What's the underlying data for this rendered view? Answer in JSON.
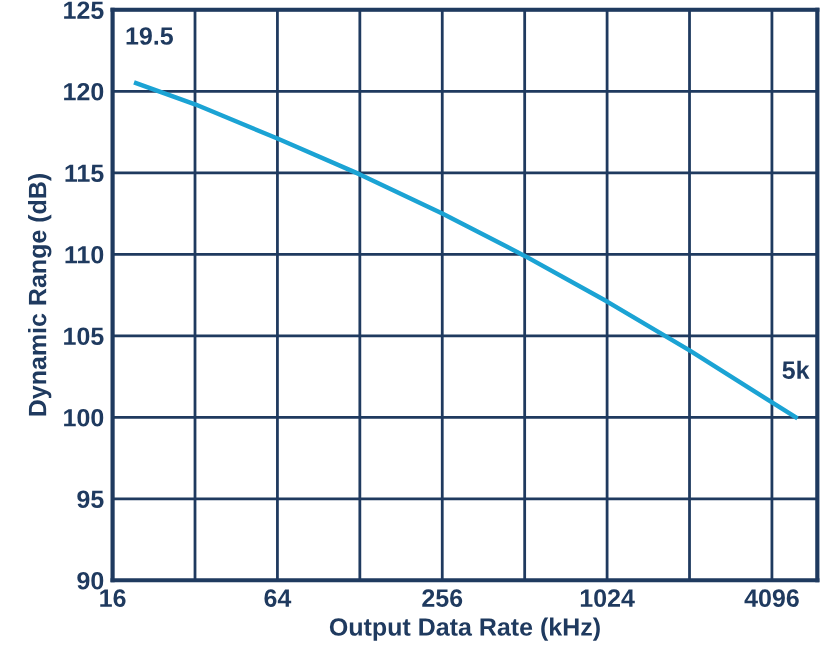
{
  "chart_data": {
    "type": "line",
    "xlabel": "Output Data Rate (kHz)",
    "ylabel": "Dynamic Range (dB)",
    "log": "x",
    "x": [
      19.5,
      32,
      64,
      128,
      256,
      512,
      1024,
      2048,
      5000
    ],
    "series": [
      {
        "color": "#1ba3d4",
        "values": [
          120.5,
          119.2,
          117.1,
          114.9,
          112.5,
          109.9,
          107.1,
          104.1,
          100
        ]
      }
    ],
    "xlim": [
      16,
      6000
    ],
    "xticks": [
      16,
      {
        "value": 32,
        "label": null
      },
      64,
      {
        "value": 128,
        "label": null
      },
      256,
      {
        "value": 512,
        "label": null
      },
      1024,
      {
        "value": 2048,
        "label": null
      },
      4096
    ],
    "ylim": [
      90,
      125
    ],
    "yticks": [
      90,
      95,
      100,
      105,
      110,
      115,
      120,
      125
    ],
    "grid": true,
    "marker": "none",
    "line_style": "solid",
    "annotations": [
      {
        "text": "19.5",
        "x": 19.5,
        "y": 120.5
      },
      {
        "text": "5k",
        "x": 5000,
        "y": 100
      }
    ]
  }
}
